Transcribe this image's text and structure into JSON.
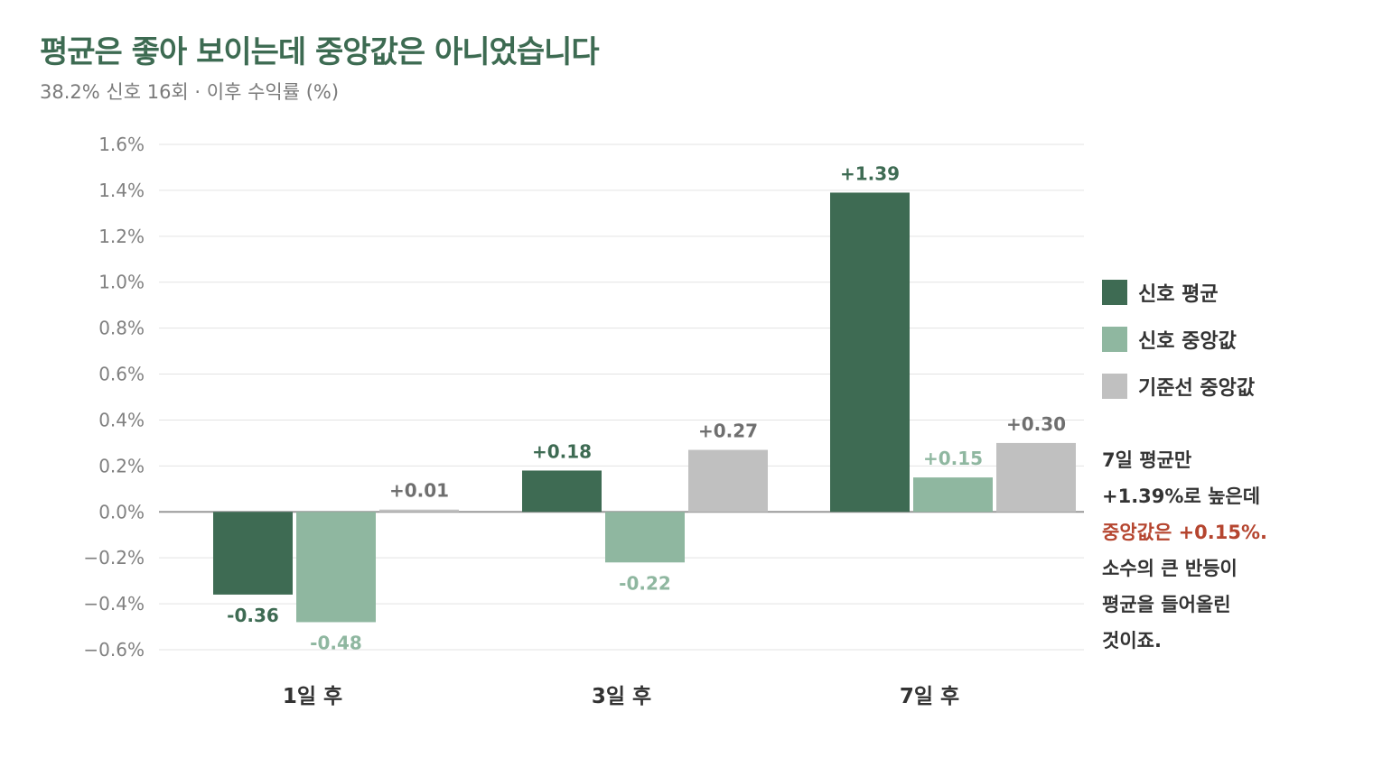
{
  "title": "평균은 좋아 보이는데 중앙값은 아니었습니다",
  "subtitle": "38.2% 신호 16회 · 이후 수익률 (%)",
  "chart_data": {
    "type": "bar",
    "categories": [
      "1일 후",
      "3일 후",
      "7일 후"
    ],
    "series": [
      {
        "name": "신호 평균",
        "values": [
          -0.36,
          0.18,
          1.39
        ],
        "labels": [
          "-0.36",
          "+0.18",
          "+1.39"
        ],
        "color": "#3e6b53"
      },
      {
        "name": "신호 중앙값",
        "values": [
          -0.48,
          -0.22,
          0.15
        ],
        "labels": [
          "-0.48",
          "-0.22",
          "+0.15"
        ],
        "color": "#8fb7a0"
      },
      {
        "name": "기준선 중앙값",
        "values": [
          0.01,
          0.27,
          0.3
        ],
        "labels": [
          "+0.01",
          "+0.27",
          "+0.30"
        ],
        "color": "#c0c0c0"
      }
    ],
    "ylim": [
      -0.6,
      1.6
    ],
    "yticks": [
      -0.6,
      -0.4,
      -0.2,
      0.0,
      0.2,
      0.4,
      0.6,
      0.8,
      1.0,
      1.2,
      1.4,
      1.6
    ],
    "ytick_labels": [
      "−0.6%",
      "−0.4%",
      "−0.2%",
      "0.0%",
      "0.2%",
      "0.4%",
      "0.6%",
      "0.8%",
      "1.0%",
      "1.2%",
      "1.4%",
      "1.6%"
    ],
    "grid": true,
    "legend_position": "right"
  },
  "note": {
    "line1": "7일 평균만",
    "line2": "+1.39%로 높은데",
    "line3": "중앙값은 +0.15%.",
    "line4": "소수의 큰 반등이",
    "line5": "평균을 들어올린",
    "line6": "것이죠."
  },
  "colors": {
    "title": "#3d6b52",
    "highlight": "#b5452f",
    "grid": "#e3e3e3",
    "baseline": "#999999"
  }
}
